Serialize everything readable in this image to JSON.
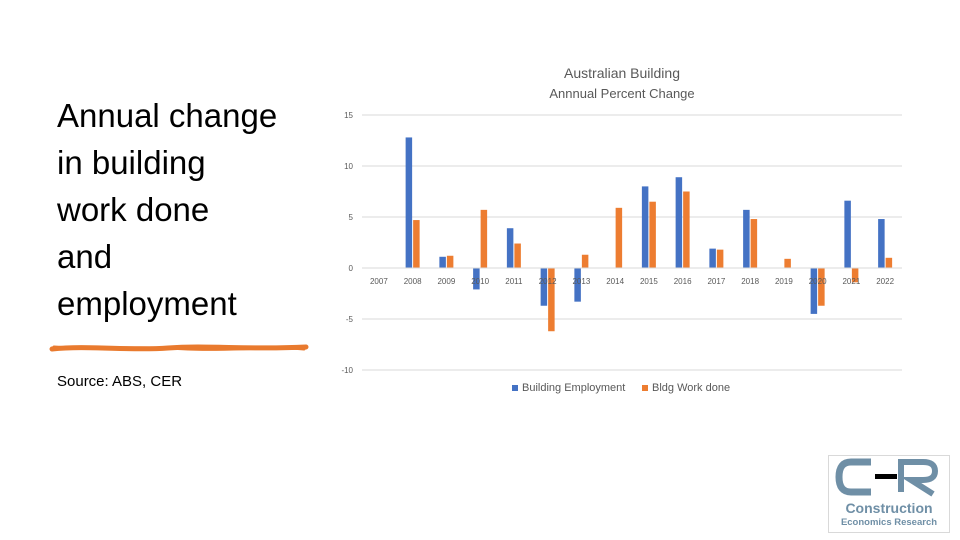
{
  "slide": {
    "title_lines": [
      "Annual change",
      "in building",
      "work done",
      "and",
      "employment"
    ],
    "source": "Source: ABS, CER",
    "accent_color": "#E97A2E"
  },
  "logo": {
    "mark": "CER",
    "name": "Construction",
    "subtitle": "Economics Research"
  },
  "chart_data": {
    "type": "bar",
    "title": "Australian Building",
    "subtitle": "Annnual Percent Change",
    "xlabel": "",
    "ylabel": "",
    "ylim": [
      -10,
      15
    ],
    "yticks": [
      15,
      10,
      5,
      0,
      -5,
      -10
    ],
    "grid": true,
    "legend_position": "bottom",
    "categories": [
      "2007",
      "2008",
      "2009",
      "2010",
      "2011",
      "2012",
      "2013",
      "2014",
      "2015",
      "2016",
      "2017",
      "2018",
      "2019",
      "2020",
      "2021",
      "2022"
    ],
    "series": [
      {
        "name": "Building Employment",
        "color": "#4472C4",
        "values": [
          0,
          12.8,
          1.1,
          -2.1,
          3.9,
          -3.7,
          -3.3,
          0,
          8.0,
          8.9,
          1.9,
          5.7,
          0,
          -4.5,
          6.6,
          4.8
        ]
      },
      {
        "name": "Bldg Work done",
        "color": "#ED7D31",
        "values": [
          0,
          4.7,
          1.2,
          5.7,
          2.4,
          -6.2,
          1.3,
          5.9,
          6.5,
          7.5,
          1.8,
          4.8,
          0.9,
          -3.7,
          -1.4,
          1.0
        ]
      }
    ]
  }
}
